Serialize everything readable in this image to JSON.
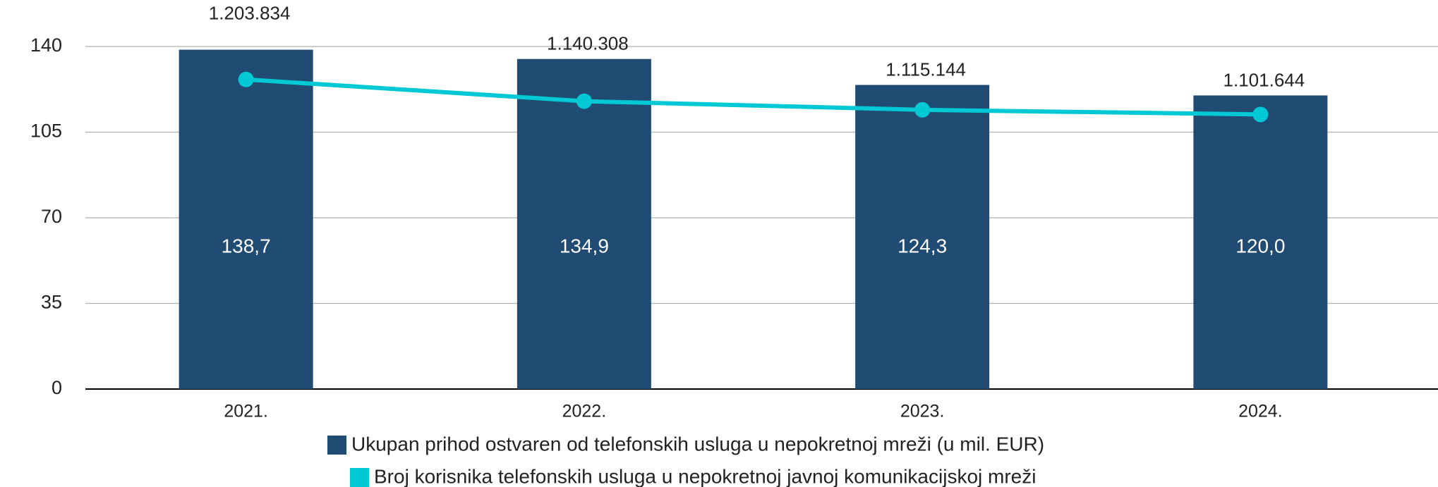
{
  "chart_data": {
    "type": "bar",
    "categories": [
      "2021.",
      "2022.",
      "2023.",
      "2024."
    ],
    "series": [
      {
        "name": "Ukupan prihod ostvaren od telefonskih usluga u nepokretnoj mreži (u mil. EUR)",
        "color": "#204b73",
        "type": "bar",
        "values": [
          138.7,
          134.9,
          124.3,
          120.0
        ],
        "value_labels": [
          "138,7",
          "134,9",
          "124,3",
          "120,0"
        ]
      },
      {
        "name": "Broj korisnika telefonskih usluga u nepokretnoj javnoj komunikacijskoj mreži",
        "color": "#00c8d4",
        "type": "line",
        "axis": "y2",
        "values": [
          1203834,
          1140308,
          1115144,
          1101644
        ],
        "value_labels": [
          "1.203.834",
          "1.140.308",
          "1.115.144",
          "1.101.644"
        ]
      }
    ],
    "ylim": [
      0,
      140
    ],
    "yticks": [
      0,
      35,
      70,
      105,
      140
    ],
    "y2lim": [
      300000,
      1300000
    ],
    "grid": true,
    "legend": "bottom"
  }
}
